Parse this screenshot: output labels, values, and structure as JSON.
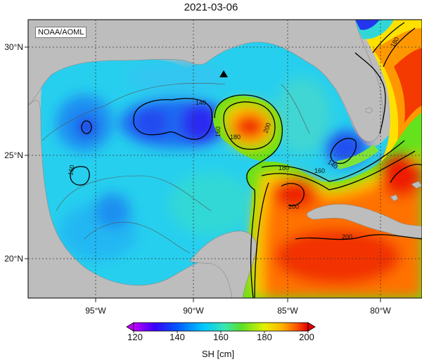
{
  "title": "2021-03-06",
  "credit": "NOAA/AOML",
  "lat_labels": [
    "30°N",
    "25°N",
    "20°N"
  ],
  "lon_labels": [
    "95°W",
    "90°W",
    "85°W",
    "80°W"
  ],
  "contour_labels": [
    "140",
    "160",
    "180",
    "200",
    "180",
    "160",
    "140",
    "200",
    "200",
    "180",
    "160"
  ],
  "colorbar": {
    "ticks": [
      "120",
      "140",
      "160",
      "180",
      "200"
    ],
    "label": "SH [cm]",
    "colors": [
      "#c000ff",
      "#3a00ff",
      "#0059ff",
      "#00c8ff",
      "#37e6b4",
      "#5ddf24",
      "#e2f000",
      "#ffb400",
      "#ff5a00",
      "#e20000"
    ]
  }
}
